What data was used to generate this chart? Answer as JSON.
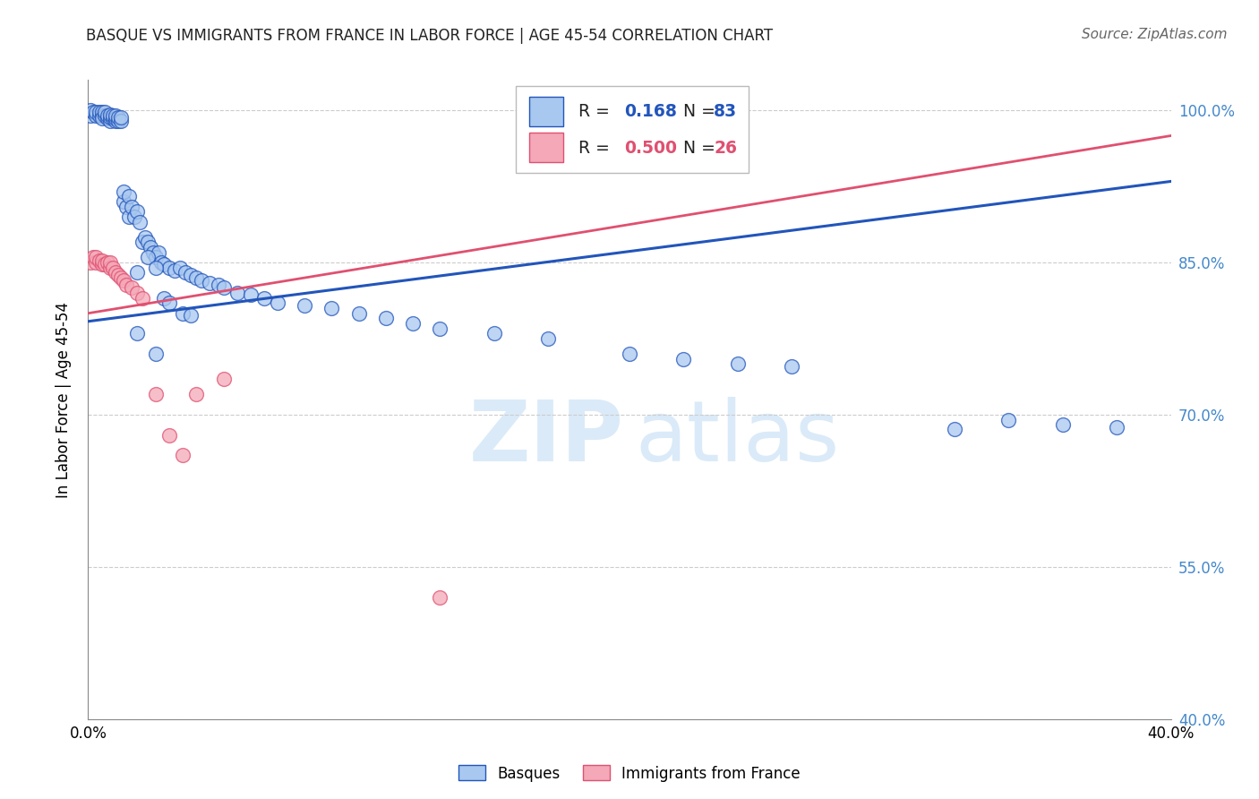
{
  "title": "BASQUE VS IMMIGRANTS FROM FRANCE IN LABOR FORCE | AGE 45-54 CORRELATION CHART",
  "source": "Source: ZipAtlas.com",
  "ylabel": "In Labor Force | Age 45-54",
  "R_basque": 0.168,
  "N_basque": 83,
  "R_immigrant": 0.5,
  "N_immigrant": 26,
  "x_min": 0.0,
  "x_max": 0.4,
  "y_min": 0.4,
  "y_max": 1.03,
  "x_ticks": [
    0.0,
    0.05,
    0.1,
    0.15,
    0.2,
    0.25,
    0.3,
    0.35,
    0.4
  ],
  "x_tick_labels": [
    "0.0%",
    "",
    "",
    "",
    "",
    "",
    "",
    "",
    "40.0%"
  ],
  "y_ticks": [
    0.4,
    0.55,
    0.7,
    0.85,
    1.0
  ],
  "y_tick_labels": [
    "40.0%",
    "55.0%",
    "70.0%",
    "85.0%",
    "100.0%"
  ],
  "grid_color": "#cccccc",
  "basque_color": "#a8c8f0",
  "immigrant_color": "#f4a8b8",
  "line_basque_color": "#2255bb",
  "line_immigrant_color": "#e05070",
  "watermark_zip": "ZIP",
  "watermark_atlas": "atlas",
  "watermark_color": "#daeaf8",
  "basque_x": [
    0.001,
    0.001,
    0.002,
    0.003,
    0.003,
    0.004,
    0.004,
    0.005,
    0.005,
    0.005,
    0.006,
    0.006,
    0.007,
    0.007,
    0.008,
    0.008,
    0.008,
    0.009,
    0.009,
    0.01,
    0.01,
    0.01,
    0.011,
    0.011,
    0.012,
    0.012,
    0.013,
    0.013,
    0.014,
    0.015,
    0.015,
    0.016,
    0.017,
    0.018,
    0.019,
    0.02,
    0.021,
    0.022,
    0.023,
    0.024,
    0.025,
    0.026,
    0.027,
    0.028,
    0.03,
    0.032,
    0.034,
    0.036,
    0.038,
    0.04,
    0.042,
    0.045,
    0.048,
    0.05,
    0.055,
    0.06,
    0.065,
    0.07,
    0.08,
    0.09,
    0.1,
    0.11,
    0.12,
    0.13,
    0.15,
    0.17,
    0.2,
    0.22,
    0.24,
    0.26,
    0.018,
    0.022,
    0.025,
    0.028,
    0.03,
    0.035,
    0.038,
    0.32,
    0.34,
    0.36,
    0.38,
    0.018,
    0.025
  ],
  "basque_y": [
    0.995,
    1.0,
    0.998,
    0.995,
    0.998,
    0.995,
    0.998,
    0.995,
    0.998,
    0.992,
    0.995,
    0.998,
    0.992,
    0.995,
    0.99,
    0.993,
    0.996,
    0.992,
    0.995,
    0.99,
    0.992,
    0.995,
    0.99,
    0.993,
    0.99,
    0.993,
    0.91,
    0.92,
    0.905,
    0.915,
    0.895,
    0.905,
    0.895,
    0.9,
    0.89,
    0.87,
    0.875,
    0.87,
    0.865,
    0.86,
    0.855,
    0.86,
    0.85,
    0.848,
    0.845,
    0.842,
    0.845,
    0.84,
    0.838,
    0.835,
    0.832,
    0.83,
    0.828,
    0.825,
    0.82,
    0.818,
    0.815,
    0.81,
    0.808,
    0.805,
    0.8,
    0.795,
    0.79,
    0.785,
    0.78,
    0.775,
    0.76,
    0.755,
    0.75,
    0.748,
    0.84,
    0.855,
    0.845,
    0.815,
    0.81,
    0.8,
    0.798,
    0.686,
    0.695,
    0.69,
    0.688,
    0.78,
    0.76
  ],
  "immigrant_x": [
    0.001,
    0.002,
    0.003,
    0.003,
    0.004,
    0.005,
    0.005,
    0.006,
    0.007,
    0.008,
    0.008,
    0.009,
    0.01,
    0.011,
    0.012,
    0.013,
    0.014,
    0.016,
    0.018,
    0.02,
    0.025,
    0.03,
    0.035,
    0.04,
    0.05,
    0.13
  ],
  "immigrant_y": [
    0.85,
    0.855,
    0.85,
    0.855,
    0.852,
    0.848,
    0.852,
    0.848,
    0.85,
    0.845,
    0.85,
    0.845,
    0.84,
    0.838,
    0.835,
    0.832,
    0.828,
    0.825,
    0.82,
    0.815,
    0.72,
    0.68,
    0.66,
    0.72,
    0.735,
    0.52
  ],
  "blue_line_x0": 0.0,
  "blue_line_x1": 0.4,
  "blue_line_y0": 0.792,
  "blue_line_y1": 0.93,
  "pink_line_x0": 0.0,
  "pink_line_x1": 0.4,
  "pink_line_y0": 0.8,
  "pink_line_y1": 0.975
}
